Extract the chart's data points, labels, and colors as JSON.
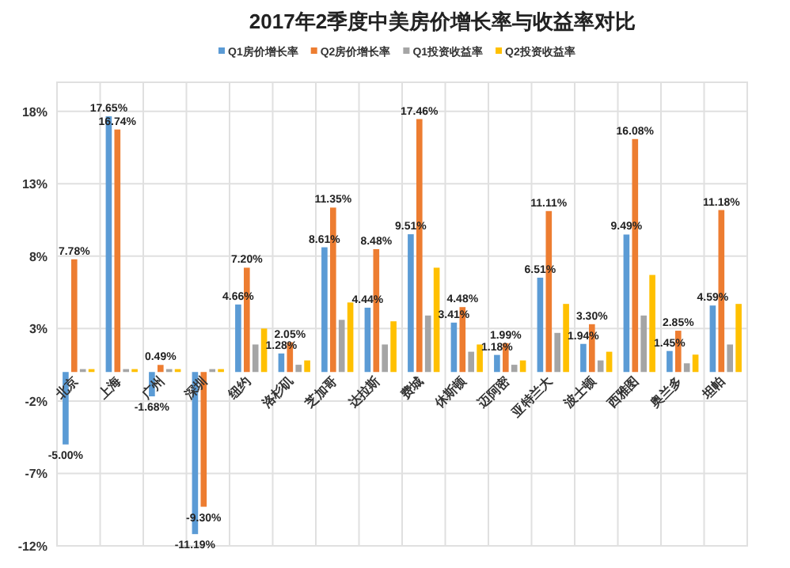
{
  "chart_data": {
    "type": "bar",
    "title": "2017年2季度中美房价增长率与收益率对比",
    "categories": [
      "北京",
      "上海",
      "广州",
      "深圳",
      "纽约",
      "洛杉矶",
      "芝加哥",
      "达拉斯",
      "费城",
      "休斯顿",
      "迈阿密",
      "亚特兰大",
      "波士顿",
      "西雅图",
      "奥兰多",
      "坦帕"
    ],
    "series": [
      {
        "name": "Q1房价增长率",
        "color": "#5b9bd5",
        "values": [
          -5.0,
          17.65,
          -1.68,
          -11.19,
          4.66,
          1.28,
          8.61,
          4.44,
          9.51,
          3.41,
          1.18,
          6.51,
          1.94,
          9.49,
          1.45,
          4.59
        ],
        "value_labels": [
          "-5.00%",
          "17.65%",
          "-1.68%",
          "-11.19%",
          "4.66%",
          "1.28%",
          "8.61%",
          "4.44%",
          "9.51%",
          "3.41%",
          "1.18%",
          "6.51%",
          "1.94%",
          "9.49%",
          "1.45%",
          "4.59%"
        ]
      },
      {
        "name": "Q2房价增长率",
        "color": "#ed7d31",
        "values": [
          7.78,
          16.74,
          0.49,
          -9.3,
          7.2,
          2.05,
          11.35,
          8.48,
          17.46,
          4.48,
          1.99,
          11.11,
          3.3,
          16.08,
          2.85,
          11.18
        ],
        "value_labels": [
          "7.78%",
          "16.74%",
          "0.49%",
          "-9.30%",
          "7.20%",
          "2.05%",
          "11.35%",
          "8.48%",
          "17.46%",
          "4.48%",
          "1.99%",
          "11.11%",
          "3.30%",
          "16.08%",
          "2.85%",
          "11.18%"
        ]
      },
      {
        "name": "Q1投资收益率",
        "color": "#a5a5a5",
        "values": [
          0.2,
          0.2,
          0.2,
          0.2,
          1.9,
          0.5,
          3.6,
          1.9,
          3.9,
          1.4,
          0.5,
          2.7,
          0.8,
          3.9,
          0.6,
          1.9
        ]
      },
      {
        "name": "Q2投资收益率",
        "color": "#ffc000",
        "values": [
          0.2,
          0.2,
          0.2,
          0.2,
          3.0,
          0.8,
          4.8,
          3.5,
          7.2,
          1.9,
          0.8,
          4.7,
          1.4,
          6.7,
          1.2,
          4.7
        ]
      }
    ],
    "ylim": [
      -12,
      20
    ],
    "yticks": [
      {
        "value": -12,
        "label": "-12%"
      },
      {
        "value": -7,
        "label": "-7%"
      },
      {
        "value": -2,
        "label": "-2%"
      },
      {
        "value": 3,
        "label": "3%"
      },
      {
        "value": 8,
        "label": "8%"
      },
      {
        "value": 13,
        "label": "13%"
      },
      {
        "value": 18,
        "label": "18%"
      }
    ],
    "grid": true,
    "legend": "top"
  }
}
